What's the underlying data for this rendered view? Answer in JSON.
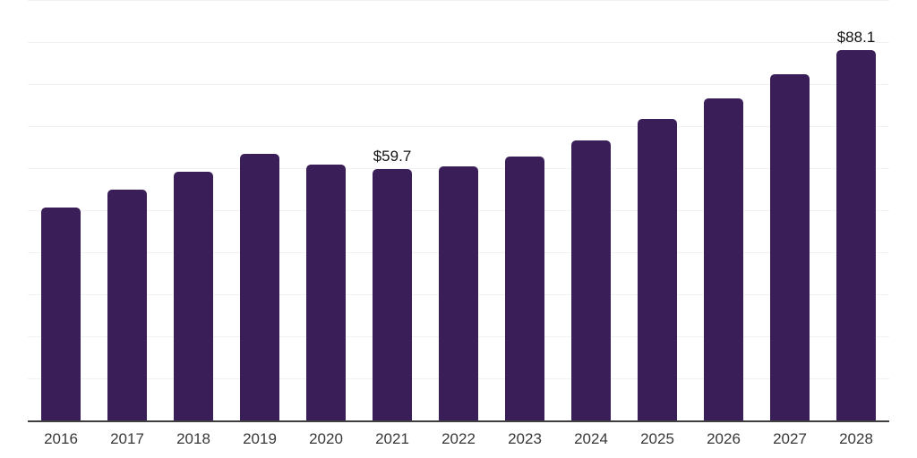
{
  "chart_data": {
    "type": "bar",
    "title": "",
    "xlabel": "",
    "ylabel": "",
    "categories": [
      "2016",
      "2017",
      "2018",
      "2019",
      "2020",
      "2021",
      "2022",
      "2023",
      "2024",
      "2025",
      "2026",
      "2027",
      "2028"
    ],
    "values": [
      50.6,
      55.0,
      59.2,
      63.5,
      60.9,
      59.7,
      60.4,
      62.8,
      66.7,
      71.8,
      76.6,
      82.4,
      88.1
    ],
    "value_labels": {
      "2021": "$59.7",
      "2028": "$88.1"
    },
    "ylim": [
      0,
      100
    ],
    "gridline_step": 10,
    "grid_on": true,
    "legend": "none",
    "colors": {
      "bar": "#391e57",
      "gridline": "#f1f1f4",
      "axis": "#3f3f3f",
      "tick_text": "#383838",
      "value_label_text": "#121212",
      "background": "#ffffff"
    }
  }
}
